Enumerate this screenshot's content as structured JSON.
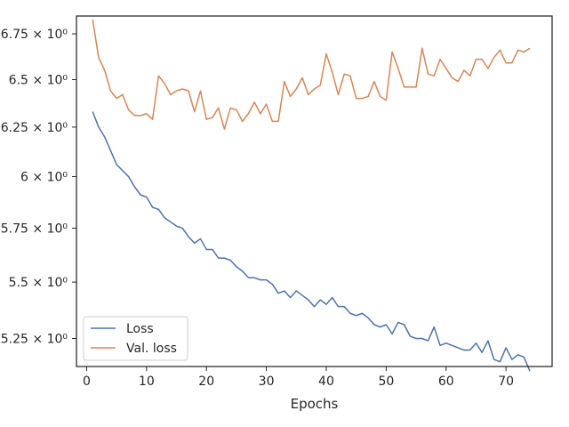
{
  "chart_data": {
    "type": "line",
    "title": "",
    "xlabel": "Epochs",
    "ylabel": "",
    "y_scale": "log",
    "xlim": [
      -1.7,
      77.7
    ],
    "ylim": [
      5.13,
      6.85
    ],
    "x_ticks": [
      0,
      10,
      20,
      30,
      40,
      50,
      60,
      70
    ],
    "x_tick_labels": [
      "0",
      "10",
      "20",
      "30",
      "40",
      "50",
      "60",
      "70"
    ],
    "y_ticks": [
      5.25,
      5.5,
      5.75,
      6.0,
      6.25,
      6.5,
      6.75
    ],
    "y_tick_labels": [
      "5.25 × 10⁰",
      "5.5 × 10⁰",
      "5.75 × 10⁰",
      "6 × 10⁰",
      "6.25 × 10⁰",
      "6.5 × 10⁰",
      "6.75 × 10⁰"
    ],
    "grid": false,
    "legend_position": "lower-left",
    "x": [
      1,
      2,
      3,
      4,
      5,
      6,
      7,
      8,
      9,
      10,
      11,
      12,
      13,
      14,
      15,
      16,
      17,
      18,
      19,
      20,
      21,
      22,
      23,
      24,
      25,
      26,
      27,
      28,
      29,
      30,
      31,
      32,
      33,
      34,
      35,
      36,
      37,
      38,
      39,
      40,
      41,
      42,
      43,
      44,
      45,
      46,
      47,
      48,
      49,
      50,
      51,
      52,
      53,
      54,
      55,
      56,
      57,
      58,
      59,
      60,
      61,
      62,
      63,
      64,
      65,
      66,
      67,
      68,
      69,
      70,
      71,
      72,
      73,
      74
    ],
    "series": [
      {
        "name": "Loss",
        "color": "#4c72b0",
        "values": [
          6.33,
          6.25,
          6.2,
          6.13,
          6.06,
          6.03,
          6.0,
          5.95,
          5.91,
          5.9,
          5.85,
          5.84,
          5.8,
          5.78,
          5.76,
          5.75,
          5.71,
          5.68,
          5.7,
          5.65,
          5.65,
          5.61,
          5.61,
          5.6,
          5.57,
          5.55,
          5.52,
          5.52,
          5.51,
          5.51,
          5.49,
          5.45,
          5.46,
          5.43,
          5.46,
          5.44,
          5.42,
          5.39,
          5.42,
          5.4,
          5.43,
          5.39,
          5.39,
          5.36,
          5.35,
          5.36,
          5.34,
          5.31,
          5.3,
          5.31,
          5.27,
          5.32,
          5.31,
          5.26,
          5.25,
          5.25,
          5.24,
          5.3,
          5.22,
          5.23,
          5.22,
          5.21,
          5.2,
          5.2,
          5.23,
          5.19,
          5.24,
          5.16,
          5.15,
          5.21,
          5.16,
          5.18,
          5.17,
          5.11
        ]
      },
      {
        "name": "Val. loss",
        "color": "#dd8452",
        "values": [
          6.83,
          6.62,
          6.55,
          6.44,
          6.4,
          6.42,
          6.34,
          6.31,
          6.31,
          6.32,
          6.29,
          6.52,
          6.48,
          6.42,
          6.44,
          6.45,
          6.44,
          6.33,
          6.44,
          6.29,
          6.3,
          6.35,
          6.24,
          6.35,
          6.34,
          6.28,
          6.32,
          6.38,
          6.32,
          6.37,
          6.28,
          6.28,
          6.49,
          6.41,
          6.45,
          6.51,
          6.42,
          6.45,
          6.47,
          6.64,
          6.54,
          6.42,
          6.53,
          6.52,
          6.4,
          6.4,
          6.41,
          6.49,
          6.41,
          6.39,
          6.65,
          6.56,
          6.46,
          6.46,
          6.46,
          6.67,
          6.53,
          6.52,
          6.61,
          6.56,
          6.51,
          6.49,
          6.55,
          6.52,
          6.61,
          6.61,
          6.56,
          6.62,
          6.66,
          6.59,
          6.59,
          6.66,
          6.65,
          6.67
        ]
      }
    ]
  }
}
